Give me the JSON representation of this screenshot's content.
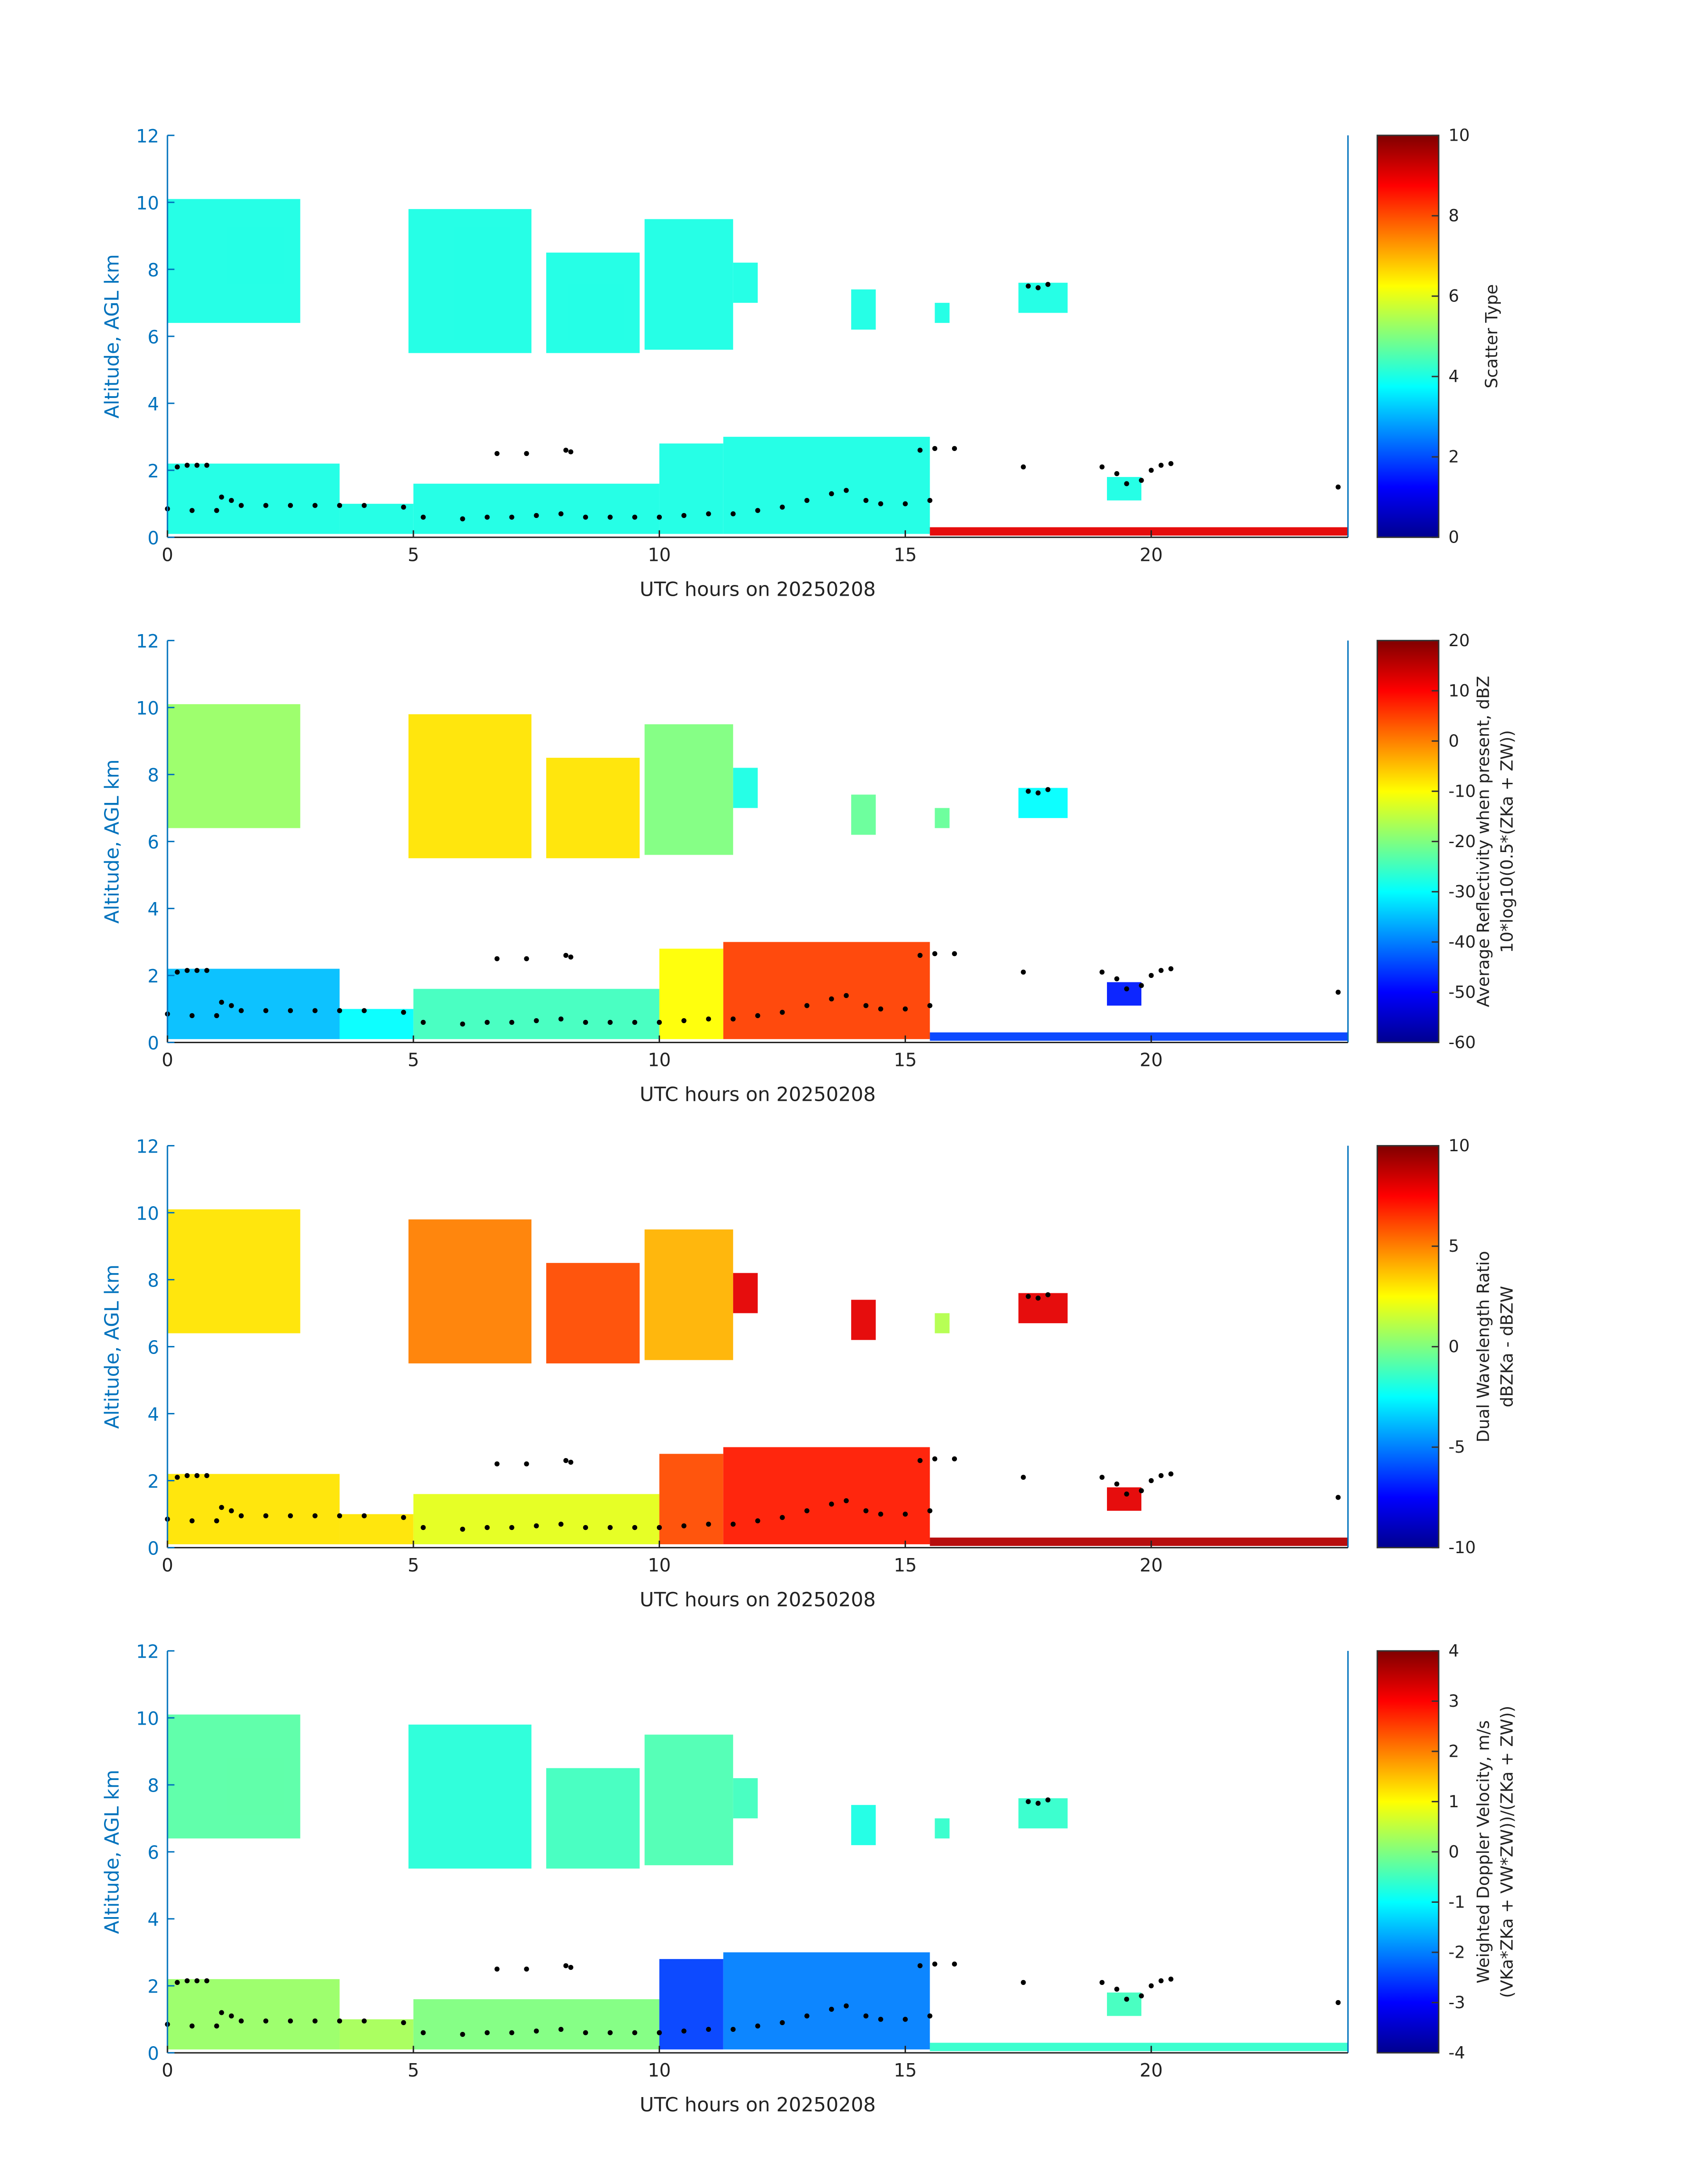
{
  "chart_data": [
    {
      "type": "heatmap",
      "xlabel": "UTC hours on 20250208",
      "ylabel": "Altitude, AGL km",
      "xlim": [
        0,
        24
      ],
      "ylim": [
        0,
        12
      ],
      "xticks": [
        "0",
        "5",
        "10",
        "15",
        "20"
      ],
      "yticks": [
        "0",
        "2",
        "4",
        "6",
        "8",
        "10",
        "12"
      ],
      "colorbar": {
        "label": [
          "Scatter Type"
        ],
        "range": [
          0,
          10
        ],
        "ticks": [
          "0",
          "2",
          "4",
          "6",
          "8",
          "10"
        ]
      },
      "colormap": "jet",
      "region_values": [
        4,
        4,
        4,
        4,
        4,
        4,
        4,
        4,
        4,
        4,
        4,
        4,
        4,
        9,
        4
      ]
    },
    {
      "type": "heatmap",
      "xlabel": "UTC hours on 20250208",
      "ylabel": "Altitude, AGL km",
      "xlim": [
        0,
        24
      ],
      "ylim": [
        0,
        12
      ],
      "xticks": [
        "0",
        "5",
        "10",
        "15",
        "20"
      ],
      "yticks": [
        "0",
        "2",
        "4",
        "6",
        "8",
        "10",
        "12"
      ],
      "colorbar": {
        "label": [
          "Average Reflectivity when present, dBZ",
          "10*log10(0.5*(Z_Ka + Z_W))"
        ],
        "range": [
          -60,
          20
        ],
        "ticks": [
          "-60",
          "-50",
          "-40",
          "-30",
          "-20",
          "-10",
          "0",
          "10",
          "20"
        ]
      },
      "colormap": "jet",
      "region_values": [
        -18,
        -8,
        -8,
        -20,
        -28,
        -22,
        -22,
        -30,
        -35,
        -30,
        -25,
        -10,
        5,
        -45,
        -48
      ]
    },
    {
      "type": "heatmap",
      "xlabel": "UTC hours on 20250208",
      "ylabel": "Altitude, AGL km",
      "xlim": [
        0,
        24
      ],
      "ylim": [
        0,
        12
      ],
      "xticks": [
        "0",
        "5",
        "10",
        "15",
        "20"
      ],
      "yticks": [
        "0",
        "2",
        "4",
        "6",
        "8",
        "10",
        "12"
      ],
      "colorbar": {
        "label": [
          "Dual Wavelength Ratio",
          "dBZ_Ka - dBZ_W"
        ],
        "range": [
          -10,
          10
        ],
        "ticks": [
          "-10",
          "-5",
          "0",
          "5",
          "10"
        ]
      },
      "colormap": "jet",
      "region_values": [
        3,
        5,
        6,
        4,
        8,
        8,
        1,
        8,
        3,
        3,
        2,
        6,
        7,
        9,
        8
      ]
    },
    {
      "type": "heatmap",
      "xlabel": "UTC hours on 20250208",
      "ylabel": "Altitude, AGL km",
      "xlim": [
        0,
        24
      ],
      "ylim": [
        0,
        12
      ],
      "xticks": [
        "0",
        "5",
        "10",
        "15",
        "20"
      ],
      "yticks": [
        "0",
        "2",
        "4",
        "6",
        "8",
        "10",
        "12"
      ],
      "colorbar": {
        "label": [
          "Weighted Doppler Velocity, m/s",
          "(V_Ka*Z_Ka + V_W*Z_W))/(Z_Ka + Z_W))"
        ],
        "range": [
          -4,
          4
        ],
        "ticks": [
          "-4",
          "-3",
          "-2",
          "-1",
          "0",
          "1",
          "2",
          "3",
          "4"
        ]
      },
      "colormap": "jet",
      "region_values": [
        -0.3,
        -0.7,
        -0.5,
        -0.4,
        -0.5,
        -0.8,
        -0.6,
        -0.6,
        0.2,
        0.3,
        0.0,
        -2.5,
        -2.0,
        -0.6,
        -0.5
      ]
    }
  ],
  "echo_regions_hours_km": [
    [
      0,
      2.7,
      6.4,
      10.1
    ],
    [
      4.9,
      7.4,
      5.5,
      9.8
    ],
    [
      7.7,
      9.6,
      5.5,
      8.5
    ],
    [
      9.7,
      11.5,
      5.6,
      9.5
    ],
    [
      11.5,
      12.0,
      7.0,
      8.2
    ],
    [
      13.9,
      14.4,
      6.2,
      7.4
    ],
    [
      15.6,
      15.9,
      6.4,
      7.0
    ],
    [
      17.3,
      18.3,
      6.7,
      7.6
    ],
    [
      0,
      3.5,
      0.1,
      2.2
    ],
    [
      3.5,
      5.0,
      0.1,
      1.0
    ],
    [
      5.0,
      10.0,
      0.1,
      1.6
    ],
    [
      10.0,
      11.3,
      0.1,
      2.8
    ],
    [
      11.3,
      15.5,
      0.1,
      3.0
    ],
    [
      15.5,
      24.0,
      0.05,
      0.3
    ],
    [
      19.1,
      19.8,
      1.1,
      1.8
    ]
  ],
  "cloud_base_points_hours_km": [
    [
      0,
      0.85
    ],
    [
      0.5,
      0.8
    ],
    [
      1,
      0.8
    ],
    [
      1.5,
      0.95
    ],
    [
      2,
      0.95
    ],
    [
      2.5,
      0.95
    ],
    [
      3,
      0.95
    ],
    [
      3.5,
      0.95
    ],
    [
      4,
      0.95
    ],
    [
      4.8,
      0.9
    ],
    [
      5.2,
      0.6
    ],
    [
      6,
      0.55
    ],
    [
      6.5,
      0.6
    ],
    [
      7,
      0.6
    ],
    [
      7.5,
      0.65
    ],
    [
      8,
      0.7
    ],
    [
      8.5,
      0.6
    ],
    [
      9,
      0.6
    ],
    [
      9.5,
      0.6
    ],
    [
      10,
      0.6
    ],
    [
      10.5,
      0.65
    ],
    [
      11,
      0.7
    ],
    [
      11.5,
      0.7
    ],
    [
      12,
      0.8
    ],
    [
      12.5,
      0.9
    ],
    [
      13,
      1.1
    ],
    [
      13.5,
      1.3
    ],
    [
      13.8,
      1.4
    ],
    [
      14.2,
      1.1
    ],
    [
      14.5,
      1.0
    ],
    [
      15,
      1.0
    ],
    [
      15.5,
      1.1
    ],
    [
      0.2,
      2.1
    ],
    [
      0.4,
      2.15
    ],
    [
      0.6,
      2.15
    ],
    [
      0.8,
      2.15
    ],
    [
      1.1,
      1.2
    ],
    [
      1.3,
      1.1
    ],
    [
      6.7,
      2.5
    ],
    [
      7.3,
      2.5
    ],
    [
      8.1,
      2.6
    ],
    [
      8.2,
      2.55
    ],
    [
      15.3,
      2.6
    ],
    [
      15.6,
      2.65
    ],
    [
      16,
      2.65
    ],
    [
      17.4,
      2.1
    ],
    [
      17.5,
      7.5
    ],
    [
      17.7,
      7.45
    ],
    [
      17.9,
      7.55
    ],
    [
      19.0,
      2.1
    ],
    [
      19.3,
      1.9
    ],
    [
      19.5,
      1.6
    ],
    [
      19.8,
      1.7
    ],
    [
      20.0,
      2.0
    ],
    [
      20.2,
      2.15
    ],
    [
      20.4,
      2.2
    ],
    [
      23.8,
      1.5
    ]
  ]
}
